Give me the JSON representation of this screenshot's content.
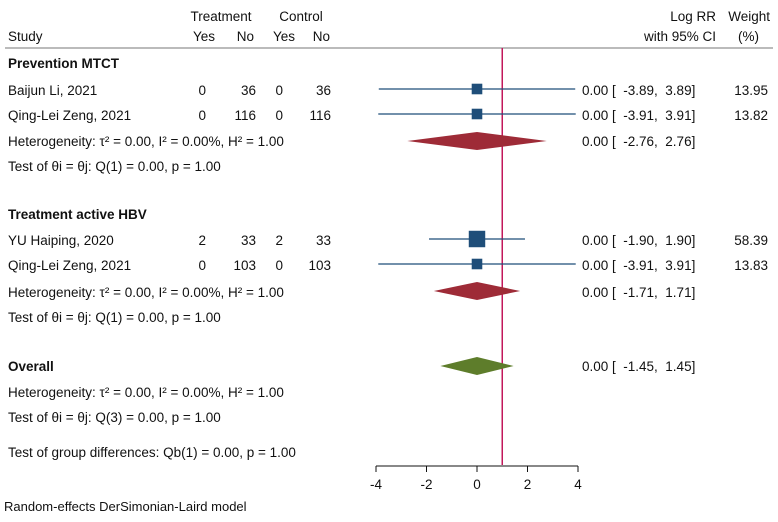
{
  "header": {
    "study": "Study",
    "treatment": "Treatment",
    "control": "Control",
    "yes": "Yes",
    "no": "No",
    "logrr": "Log RR",
    "ci": "with 95% CI",
    "weight": "Weight",
    "weight_unit": "(%)"
  },
  "groups": [
    {
      "title": "Prevention MTCT",
      "rows": [
        {
          "study": "Baijun Li, 2021",
          "t_yes": "0",
          "t_no": "36",
          "c_yes": "0",
          "c_no": "36",
          "est": 0.0,
          "lo": -3.89,
          "hi": 3.89,
          "ci_text": "0.00 [  -3.89,  3.89]",
          "weight": "13.95",
          "weight_value": 13.95
        },
        {
          "study": "Qing-Lei Zeng, 2021",
          "t_yes": "0",
          "t_no": "116",
          "c_yes": "0",
          "c_no": "116",
          "est": 0.0,
          "lo": -3.91,
          "hi": 3.91,
          "ci_text": "0.00 [  -3.91,  3.91]",
          "weight": "13.82",
          "weight_value": 13.82
        }
      ],
      "heterogeneity": "Heterogeneity: τ² = 0.00, I² = 0.00%, H² = 1.00",
      "test": "Test of θi = θj: Q(1) = 0.00, p = 1.00",
      "pooled": {
        "est": 0.0,
        "lo": -2.76,
        "hi": 2.76,
        "ci_text": "0.00 [  -2.76,  2.76]"
      }
    },
    {
      "title": "Treatment active HBV",
      "rows": [
        {
          "study": "YU Haiping, 2020",
          "t_yes": "2",
          "t_no": "33",
          "c_yes": "2",
          "c_no": "33",
          "est": 0.0,
          "lo": -1.9,
          "hi": 1.9,
          "ci_text": "0.00 [  -1.90,  1.90]",
          "weight": "58.39",
          "weight_value": 58.39
        },
        {
          "study": "Qing-Lei Zeng, 2021",
          "t_yes": "0",
          "t_no": "103",
          "c_yes": "0",
          "c_no": "103",
          "est": 0.0,
          "lo": -3.91,
          "hi": 3.91,
          "ci_text": "0.00 [  -3.91,  3.91]",
          "weight": "13.83",
          "weight_value": 13.83
        }
      ],
      "heterogeneity": "Heterogeneity: τ² = 0.00, I² = 0.00%, H² = 1.00",
      "test": "Test of θi = θj: Q(1) = 0.00, p = 1.00",
      "pooled": {
        "est": 0.0,
        "lo": -1.71,
        "hi": 1.71,
        "ci_text": "0.00 [  -1.71,  1.71]"
      }
    }
  ],
  "overall": {
    "title": "Overall",
    "est": 0.0,
    "lo": -1.45,
    "hi": 1.45,
    "ci_text": "0.00 [  -1.45,  1.45]",
    "heterogeneity": "Heterogeneity: τ² = 0.00, I² = 0.00%, H² = 1.00",
    "test": "Test of θi = θj: Q(3) = 0.00, p = 1.00",
    "group_diff": "Test of group differences: Qb(1) = 0.00, p = 1.00"
  },
  "footnote": "Random-effects DerSimonian-Laird model",
  "chart_data": {
    "type": "forest",
    "xlim": [
      -4,
      4
    ],
    "xticks": [
      "-4",
      "-2",
      "0",
      "2",
      "4"
    ],
    "reference_line": 1,
    "colors": {
      "study_marker": "#1f4e79",
      "ci_line": "#1f4e79",
      "subgroup_diamond": "#9e2b37",
      "overall_diamond": "#5e7d2b",
      "reference_line": "#c2185b"
    }
  }
}
